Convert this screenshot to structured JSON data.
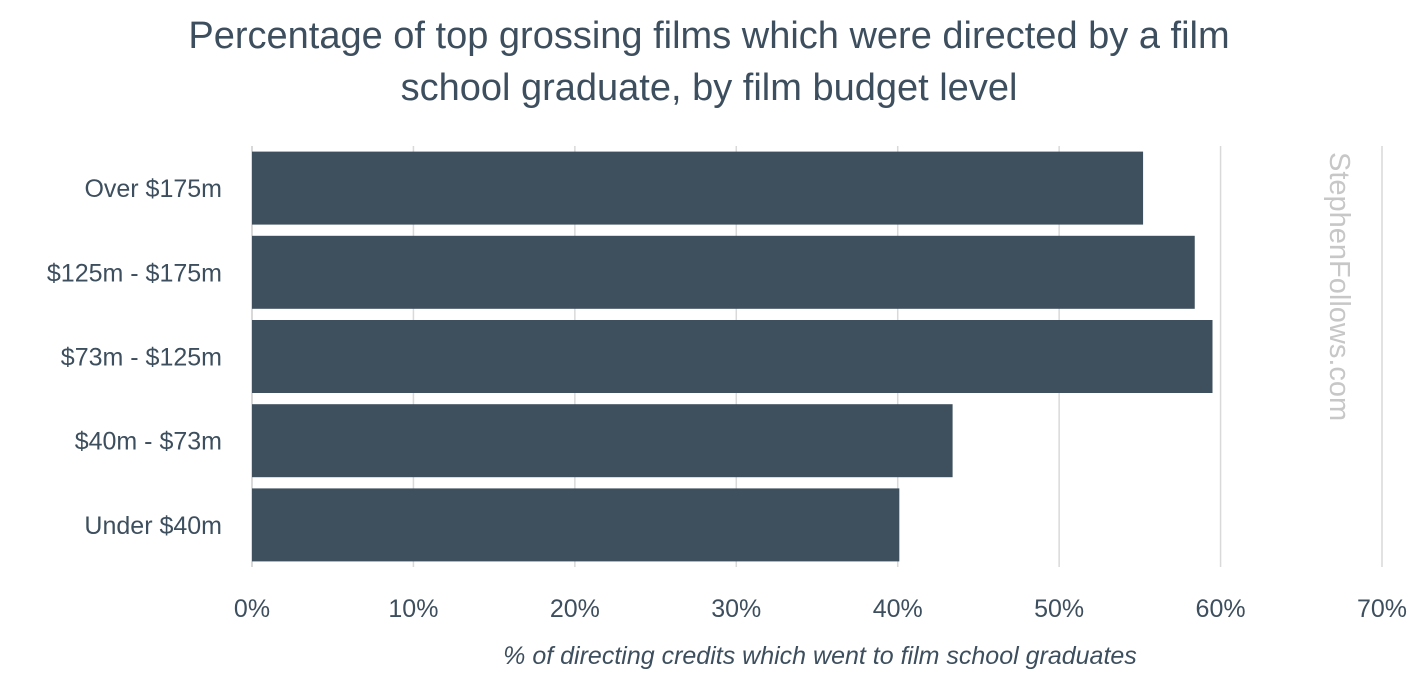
{
  "chart_data": {
    "type": "bar",
    "orientation": "horizontal",
    "title_lines": [
      "Percentage of top grossing films which were directed by a film",
      "school graduate, by film budget level"
    ],
    "categories": [
      "Over $175m",
      "$125m - $175m",
      "$73m - $125m",
      "$40m - $73m",
      "Under $40m"
    ],
    "values": [
      55.2,
      58.4,
      59.5,
      43.4,
      40.1
    ],
    "xlabel": "% of directing credits which went to film school graduates",
    "ylabel": "",
    "xlim": [
      0,
      70
    ],
    "x_ticks": [
      "0%",
      "10%",
      "20%",
      "30%",
      "40%",
      "50%",
      "60%",
      "70%"
    ],
    "grid": "vertical",
    "legend": "none",
    "watermark": "StephenFollows.com",
    "colors": {
      "bar": "#3e4f5d",
      "grid": "#d9d9d9",
      "text": "#3d4f5e",
      "watermark": "#c7c7c7"
    }
  }
}
